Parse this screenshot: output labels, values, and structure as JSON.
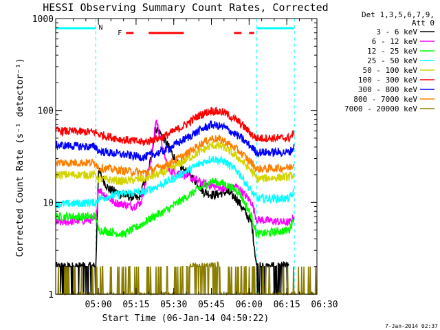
{
  "chart_data": {
    "type": "line",
    "title": "HESSI Observing Summary Count Rates, Corrected",
    "xlabel": "Start Time (06-Jan-14 04:50:22)",
    "ylabel": "Corrected Count Rate (s⁻¹ detector⁻¹)",
    "y_scale": "log",
    "ylim": [
      1,
      1000
    ],
    "xlim_minutes": [
      -7,
      97
    ],
    "x_ticks": [
      {
        "minute": 10,
        "label": "05:00"
      },
      {
        "minute": 25,
        "label": "05:15"
      },
      {
        "minute": 40,
        "label": "05:30"
      },
      {
        "minute": 55,
        "label": "05:45"
      },
      {
        "minute": 70,
        "label": "06:00"
      },
      {
        "minute": 85,
        "label": "06:15"
      },
      {
        "minute": 100,
        "label": "06:30"
      }
    ],
    "y_ticks": [
      {
        "value": 1,
        "label": "1"
      },
      {
        "value": 10,
        "label": "10"
      },
      {
        "value": 100,
        "label": "100"
      },
      {
        "value": 1000,
        "label": "1000"
      }
    ],
    "legend_header": [
      "Det 1,3,5,6,7,9,",
      "Att 0"
    ],
    "series": [
      {
        "name": "3 - 6 keV",
        "color": "#000000",
        "points": [
          [
            -7,
            2
          ],
          [
            9,
            2
          ],
          [
            10,
            22
          ],
          [
            14,
            14
          ],
          [
            20,
            12
          ],
          [
            26,
            11
          ],
          [
            30,
            22
          ],
          [
            33,
            65
          ],
          [
            36,
            50
          ],
          [
            42,
            25
          ],
          [
            48,
            18
          ],
          [
            52,
            13
          ],
          [
            56,
            12
          ],
          [
            61,
            13
          ],
          [
            65,
            11
          ],
          [
            71,
            6
          ],
          [
            73,
            2
          ],
          [
            86,
            2
          ]
        ]
      },
      {
        "name": "6 - 12 keV",
        "color": "#ff00ff",
        "points": [
          [
            -7,
            6
          ],
          [
            9,
            6.5
          ],
          [
            10,
            14
          ],
          [
            16,
            10
          ],
          [
            24,
            9
          ],
          [
            27,
            10
          ],
          [
            31,
            30
          ],
          [
            33,
            80
          ],
          [
            35,
            45
          ],
          [
            38,
            22
          ],
          [
            42,
            21
          ],
          [
            48,
            18
          ],
          [
            52,
            16
          ],
          [
            56,
            15
          ],
          [
            61,
            14
          ],
          [
            65,
            15
          ],
          [
            71,
            10
          ],
          [
            73,
            6.5
          ],
          [
            86,
            6
          ],
          [
            88,
            7
          ]
        ]
      },
      {
        "name": "12 - 25 keV",
        "color": "#00ff00",
        "points": [
          [
            -7,
            7
          ],
          [
            9,
            7
          ],
          [
            10,
            5
          ],
          [
            20,
            4.5
          ],
          [
            26,
            5.5
          ],
          [
            32,
            7
          ],
          [
            38,
            8.5
          ],
          [
            44,
            11
          ],
          [
            50,
            14
          ],
          [
            55,
            17
          ],
          [
            60,
            16
          ],
          [
            66,
            13
          ],
          [
            71,
            7
          ],
          [
            73,
            4.5
          ],
          [
            86,
            5
          ],
          [
            88,
            7
          ]
        ]
      },
      {
        "name": "25 - 50 keV",
        "color": "#00ffff",
        "points": [
          [
            -7,
            9.5
          ],
          [
            9,
            10
          ],
          [
            10,
            11
          ],
          [
            20,
            12.5
          ],
          [
            28,
            13
          ],
          [
            36,
            16
          ],
          [
            44,
            21
          ],
          [
            50,
            26
          ],
          [
            55,
            30
          ],
          [
            60,
            28
          ],
          [
            66,
            21
          ],
          [
            71,
            13
          ],
          [
            73,
            11
          ],
          [
            86,
            11
          ],
          [
            88,
            13
          ]
        ]
      },
      {
        "name": "50 - 100 keV",
        "color": "#d4d400",
        "points": [
          [
            -7,
            20
          ],
          [
            9,
            20
          ],
          [
            10,
            18
          ],
          [
            20,
            17
          ],
          [
            28,
            18
          ],
          [
            36,
            21
          ],
          [
            44,
            28
          ],
          [
            50,
            35
          ],
          [
            55,
            42
          ],
          [
            60,
            40
          ],
          [
            66,
            30
          ],
          [
            71,
            22
          ],
          [
            73,
            18
          ],
          [
            86,
            19
          ],
          [
            88,
            20
          ]
        ]
      },
      {
        "name": "100 - 300 keV",
        "color": "#ff0000",
        "points": [
          [
            -7,
            60
          ],
          [
            9,
            58
          ],
          [
            10,
            55
          ],
          [
            20,
            48
          ],
          [
            28,
            45
          ],
          [
            36,
            52
          ],
          [
            44,
            68
          ],
          [
            50,
            88
          ],
          [
            55,
            100
          ],
          [
            60,
            95
          ],
          [
            66,
            75
          ],
          [
            71,
            55
          ],
          [
            73,
            50
          ],
          [
            86,
            50
          ],
          [
            88,
            57
          ]
        ]
      },
      {
        "name": "300 - 800 keV",
        "color": "#0000ff",
        "points": [
          [
            -7,
            42
          ],
          [
            9,
            40
          ],
          [
            10,
            36
          ],
          [
            20,
            33
          ],
          [
            28,
            31
          ],
          [
            36,
            36
          ],
          [
            44,
            48
          ],
          [
            50,
            60
          ],
          [
            55,
            70
          ],
          [
            60,
            66
          ],
          [
            66,
            52
          ],
          [
            71,
            40
          ],
          [
            73,
            35
          ],
          [
            86,
            35
          ],
          [
            88,
            40
          ]
        ]
      },
      {
        "name": "800 - 7000 keV",
        "color": "#ff8000",
        "points": [
          [
            -7,
            27
          ],
          [
            9,
            27
          ],
          [
            10,
            24
          ],
          [
            20,
            22
          ],
          [
            28,
            21
          ],
          [
            36,
            25
          ],
          [
            44,
            32
          ],
          [
            50,
            42
          ],
          [
            55,
            50
          ],
          [
            60,
            47
          ],
          [
            66,
            36
          ],
          [
            71,
            27
          ],
          [
            73,
            23
          ],
          [
            86,
            24
          ],
          [
            88,
            26
          ]
        ]
      },
      {
        "name": "7000 - 20000 keV",
        "color": "#8b7d00",
        "points": [
          [
            -7,
            1
          ],
          [
            45,
            1
          ],
          [
            46,
            2
          ],
          [
            58,
            2
          ],
          [
            59,
            1
          ],
          [
            97,
            1
          ]
        ]
      }
    ],
    "attenuator": {
      "label": "N",
      "color": "#00ffff",
      "segments": [
        [
          -7,
          9
        ],
        [
          73,
          88
        ]
      ],
      "boundaries": [
        9,
        73,
        88
      ]
    },
    "flare_flag": {
      "label": "F",
      "color": "#ff0000",
      "segments": [
        [
          21,
          24
        ],
        [
          30,
          44
        ],
        [
          64,
          67
        ],
        [
          70,
          72
        ]
      ]
    },
    "timestamp": "7-Jan-2014 02:37"
  }
}
